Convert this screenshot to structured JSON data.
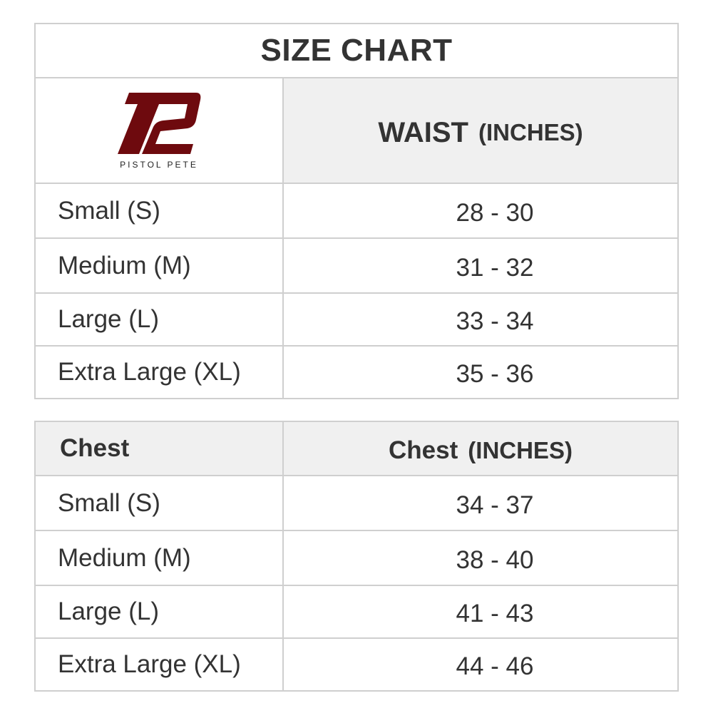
{
  "title": "SIZE CHART",
  "logo": {
    "text": "PISTOL PETE",
    "color": "#6e0a0e"
  },
  "waist": {
    "header_main": "WAIST",
    "header_unit": "(INCHES)",
    "rows": [
      {
        "size": "Small (S)",
        "value": "28 - 30"
      },
      {
        "size": "Medium (M)",
        "value": "31 - 32"
      },
      {
        "size": "Large (L)",
        "value": "33 - 34"
      },
      {
        "size": "Extra Large (XL)",
        "value": "35 - 36"
      }
    ]
  },
  "chest": {
    "header_left": "Chest",
    "header_main": "Chest",
    "header_unit": "(INCHES)",
    "rows": [
      {
        "size": "Small (S)",
        "value": "34 - 37"
      },
      {
        "size": "Medium (M)",
        "value": "38 - 40"
      },
      {
        "size": "Large (L)",
        "value": "41 - 43"
      },
      {
        "size": "Extra Large (XL)",
        "value": "44 - 46"
      }
    ]
  }
}
